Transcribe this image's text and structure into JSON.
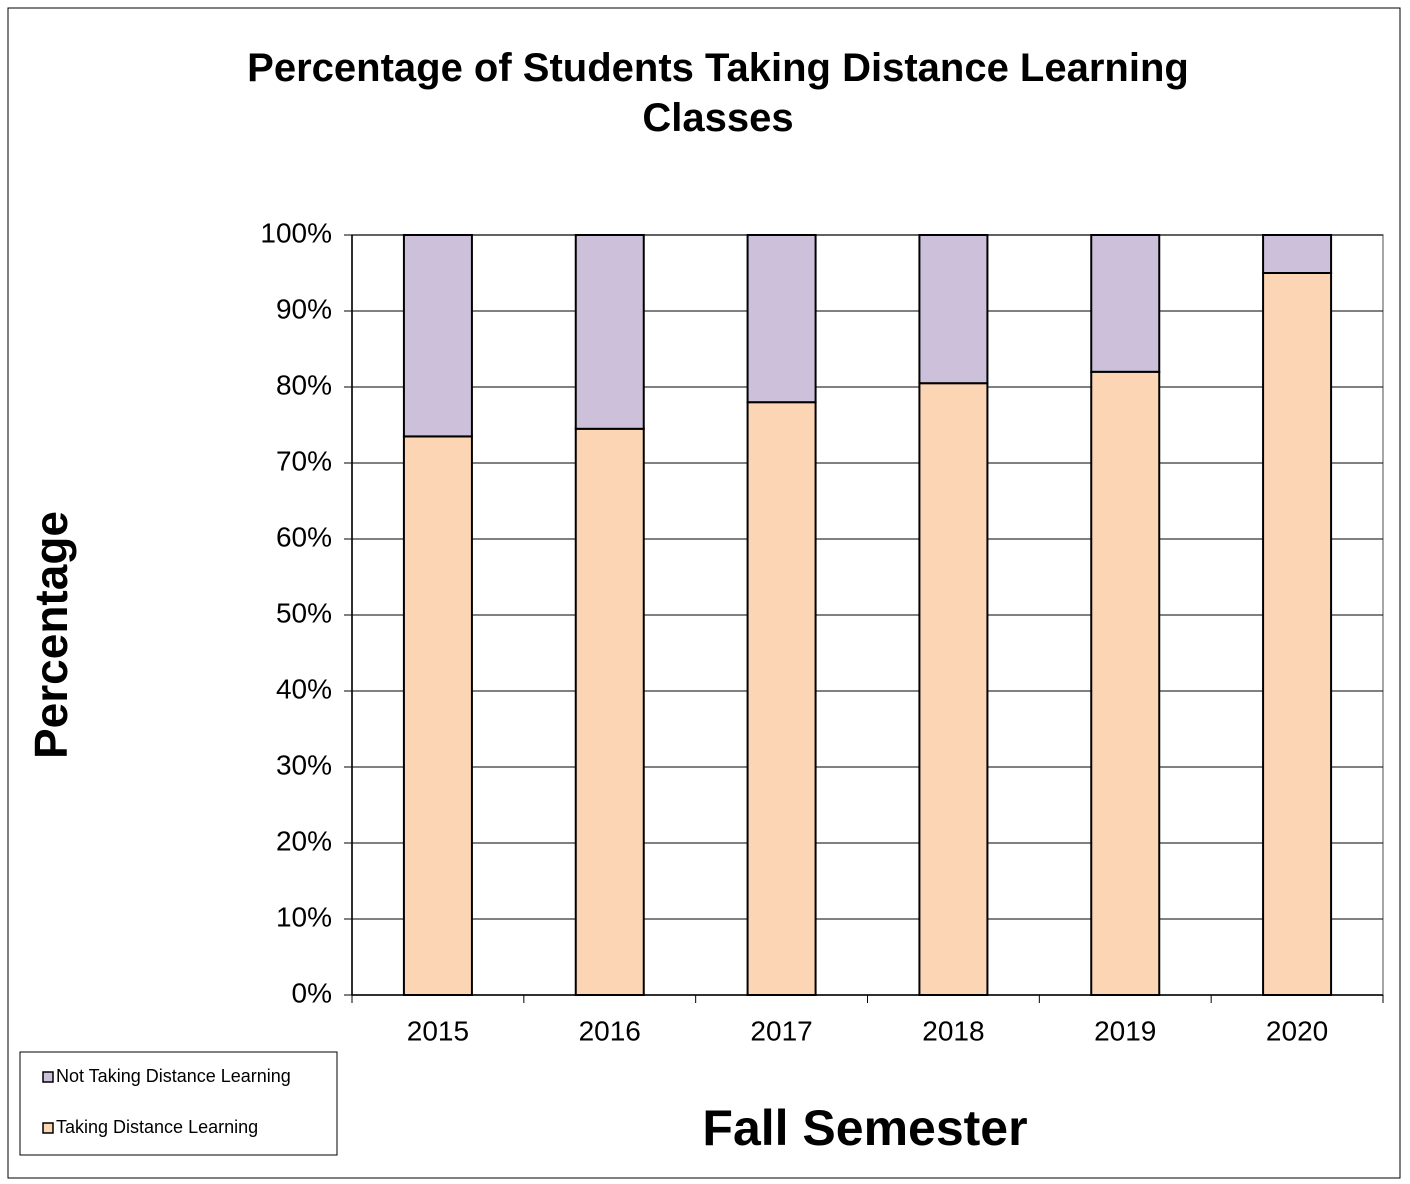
{
  "chart_data": {
    "type": "stacked_bar",
    "title": "Percentage of Students Taking Distance Learning Classes",
    "y_label": "Percentage",
    "x_label": "Fall Semester",
    "categories": [
      "2015",
      "2016",
      "2017",
      "2018",
      "2019",
      "2020"
    ],
    "series": [
      {
        "name": "Not Taking Distance Learning",
        "color": "#ccc0da",
        "values": [
          26.5,
          25.5,
          22,
          19.5,
          18,
          5
        ]
      },
      {
        "name": "Taking Distance Learning",
        "color": "#fcd5b5",
        "values": [
          73.5,
          74.5,
          78,
          80.5,
          82,
          95
        ]
      }
    ],
    "ylim": [
      0,
      100
    ],
    "yticks": [
      {
        "value": 0,
        "label": "0%"
      },
      {
        "value": 10,
        "label": "10%"
      },
      {
        "value": 20,
        "label": "20%"
      },
      {
        "value": 30,
        "label": "30%"
      },
      {
        "value": 40,
        "label": "40%"
      },
      {
        "value": 50,
        "label": "50%"
      },
      {
        "value": 60,
        "label": "60%"
      },
      {
        "value": 70,
        "label": "70%"
      },
      {
        "value": 80,
        "label": "80%"
      },
      {
        "value": 90,
        "label": "90%"
      },
      {
        "value": 100,
        "label": "100%"
      }
    ],
    "grid": true,
    "legend": "bottom-left"
  }
}
